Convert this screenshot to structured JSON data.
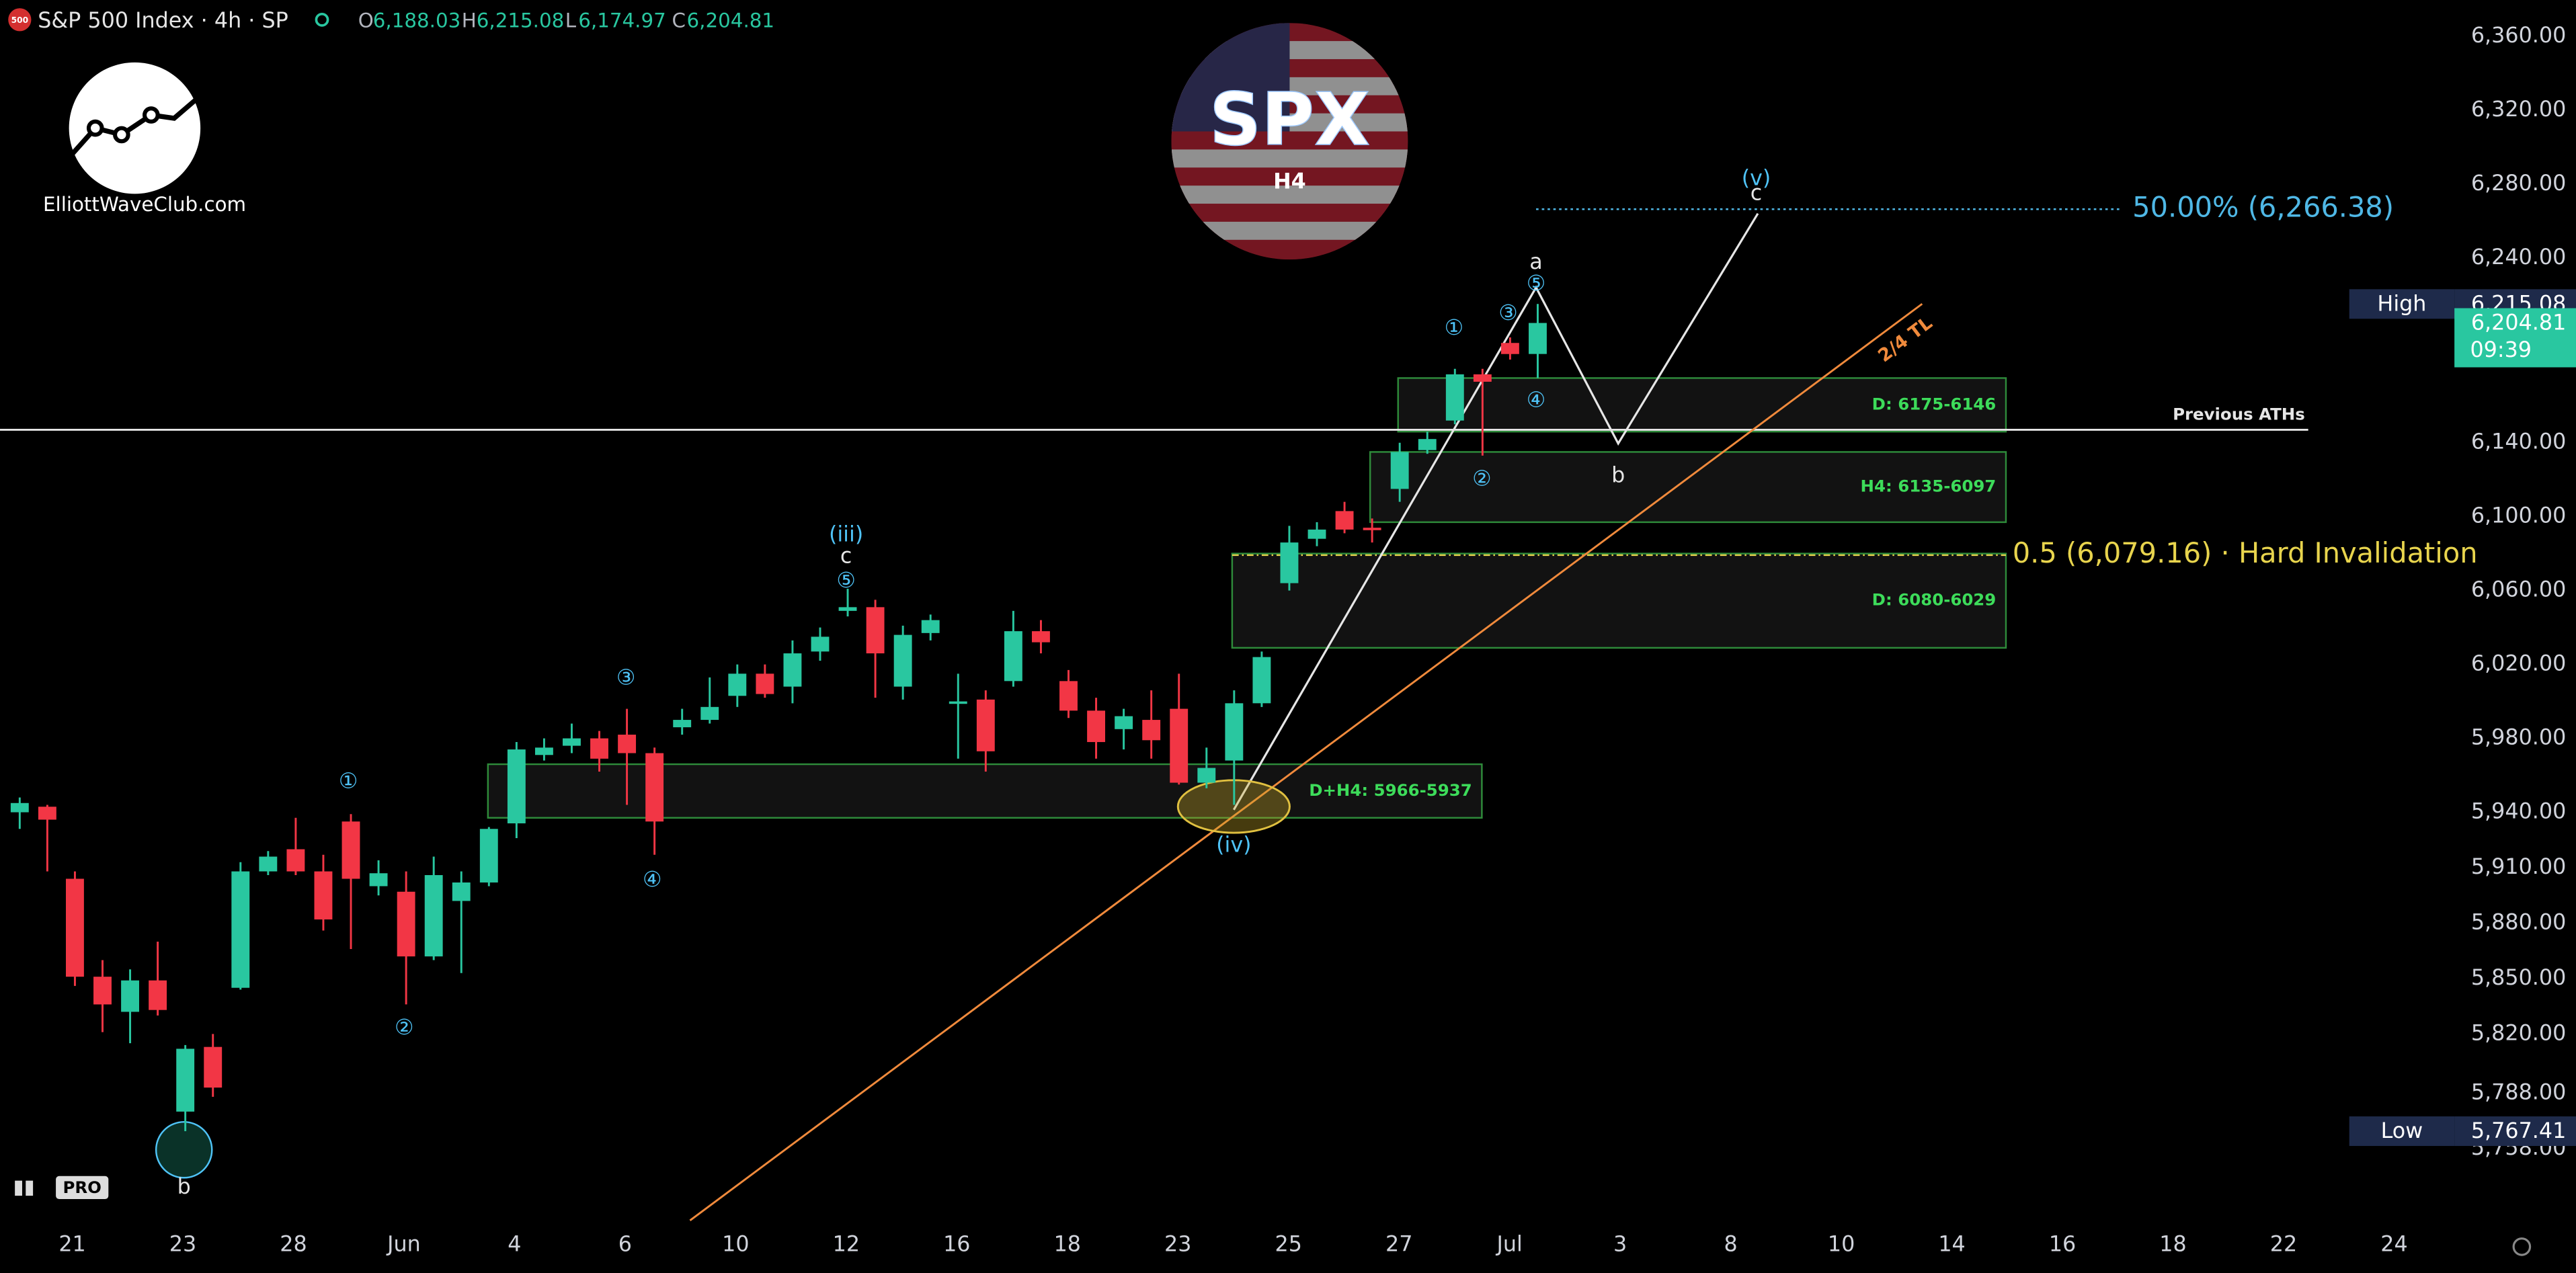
{
  "header": {
    "badge": "500",
    "symbol": "S&P 500 Index · 4h · SP",
    "o_label": "O",
    "o": "6,188.03",
    "h_label": "H",
    "h": "6,215.08",
    "l_label": "L",
    "l": "6,174.97",
    "c_label": "C",
    "c": "6,204.81"
  },
  "logo": {
    "site": "ElliottWaveClub.com",
    "ticker": "SPX",
    "timeframe": "H4",
    "platform": "PRO"
  },
  "chart_data": {
    "type": "candlestick",
    "up_color": "#29c7a0",
    "down_color": "#f23645",
    "open": [
      5940,
      5943,
      5904,
      5851,
      5832,
      5849,
      5778,
      5813,
      5845,
      5908,
      5920,
      5908,
      5935,
      5900,
      5897,
      5862,
      5892,
      5902,
      5934,
      5971,
      5976,
      5980,
      5982,
      5972,
      5986,
      5990,
      6003,
      6015,
      6008,
      6027,
      6049,
      6051,
      6008,
      6037,
      5999,
      6001,
      6011,
      6038,
      6011,
      5995,
      5985,
      5990,
      5996,
      5956,
      5968,
      5999,
      6064,
      6088,
      6103,
      6094,
      6115,
      6136,
      6152,
      6177,
      6194,
      6188.03
    ],
    "high": [
      5948,
      5944,
      5908,
      5860,
      5855,
      5870,
      5814,
      5820,
      5913,
      5919,
      5937,
      5917,
      5939,
      5914,
      5908,
      5916,
      5908,
      5932,
      5978,
      5980,
      5988,
      5984,
      5996,
      5975,
      5996,
      6013,
      6020,
      6020,
      6033,
      6040,
      6061,
      6055,
      6041,
      6047,
      6015,
      6006,
      6049,
      6044,
      6017,
      6002,
      5996,
      6006,
      6015,
      5975,
      6006,
      6027,
      6095,
      6097,
      6108,
      6099,
      6140,
      6146,
      6180,
      6180,
      6197,
      6215.08
    ],
    "low": [
      5931,
      5908,
      5846,
      5821,
      5815,
      5830,
      5767.41,
      5786,
      5844,
      5906,
      5906,
      5876,
      5866,
      5895,
      5836,
      5860,
      5853,
      5900,
      5926,
      5968,
      5972,
      5962,
      5944,
      5917,
      5982,
      5988,
      5997,
      6002,
      5999,
      6022,
      6046,
      6002,
      6001,
      6033,
      5969,
      5962,
      6008,
      6026,
      5991,
      5969,
      5974,
      5969,
      5955,
      5953,
      5944,
      5997,
      6060,
      6084,
      6091,
      6086,
      6108,
      6134,
      6150,
      6133,
      6185,
      6174.97
    ],
    "close": [
      5945,
      5936,
      5851,
      5836,
      5849,
      5833,
      5812,
      5791,
      5908,
      5916,
      5908,
      5882,
      5904,
      5907,
      5862,
      5906,
      5902,
      5931,
      5974,
      5975,
      5980,
      5969,
      5972,
      5935,
      5990,
      5997,
      6015,
      6004,
      6026,
      6035,
      6051,
      6026,
      6036,
      6044,
      6000,
      5973,
      6038,
      6032,
      5995,
      5978,
      5992,
      5979,
      5956,
      5964,
      5999,
      6024,
      6086,
      6093,
      6093,
      6093,
      6135,
      6142,
      6177,
      6173,
      6188,
      6204.81
    ],
    "x_tick_labels": [
      "21",
      "23",
      "28",
      "Jun",
      "4",
      "6",
      "10",
      "12",
      "16",
      "18",
      "23",
      "25",
      "27",
      "Jul",
      "3",
      "8",
      "10",
      "14",
      "16",
      "18",
      "22",
      "24"
    ],
    "ylim": [
      5719.1,
      6379.6
    ],
    "yticks": [
      {
        "value": 6360,
        "label": "6,360.00"
      },
      {
        "value": 6320,
        "label": "6,320.00"
      },
      {
        "value": 6280,
        "label": "6,280.00"
      },
      {
        "value": 6240,
        "label": "6,240.00"
      },
      {
        "value": 6140,
        "label": "6,140.00"
      },
      {
        "value": 6100,
        "label": "6,100.00"
      },
      {
        "value": 6060,
        "label": "6,060.00"
      },
      {
        "value": 6020,
        "label": "6,020.00"
      },
      {
        "value": 5980,
        "label": "5,980.00"
      },
      {
        "value": 5940,
        "label": "5,940.00"
      },
      {
        "value": 5910,
        "label": "5,910.00"
      },
      {
        "value": 5880,
        "label": "5,880.00"
      },
      {
        "value": 5850,
        "label": "5,850.00"
      },
      {
        "value": 5820,
        "label": "5,820.00"
      },
      {
        "value": 5788,
        "label": "5,788.00"
      },
      {
        "value": 5758,
        "label": "5,758.00"
      }
    ],
    "grid": false,
    "price_tags": [
      {
        "name": "High",
        "value": 6215.08,
        "value_label": "6,215.08",
        "color": "#1e2a4a"
      },
      {
        "value": 6204.81,
        "value_label": "6,204.81",
        "countdown": "09:39",
        "color": "#29c7a0"
      },
      {
        "name": "Low",
        "value": 5767.41,
        "value_label": "5,767.41",
        "color": "#1e2a4a"
      }
    ],
    "zones": [
      {
        "label": "D: 6175-6146",
        "top": 6175,
        "bottom": 6146
      },
      {
        "label": "H4: 6135-6097",
        "top": 6135,
        "bottom": 6097
      },
      {
        "label": "D: 6080-6029",
        "top": 6080,
        "bottom": 6029
      },
      {
        "label": "D+H4: 5966-5937",
        "top": 5966,
        "bottom": 5937
      }
    ],
    "zone_color": "#2e8b3a",
    "zone_label_color": "#3ddc5a",
    "levels": [
      {
        "label": "Previous ATHs",
        "value": 6147,
        "color": "#e6e6e6"
      },
      {
        "label": "50.00% (6,266.38)",
        "value": 6266.38,
        "color": "#4fb8e6"
      },
      {
        "label": "0.5 (6,079.16) · Hard Invalidation",
        "value": 6079.16,
        "color": "#e8d44d"
      }
    ],
    "annotations": [
      "①",
      "②",
      "③",
      "④",
      "(iii)",
      "c",
      "⑤",
      "b",
      "(iv)",
      "①",
      "②",
      "③",
      "④",
      "⑤",
      "a",
      "b",
      "(v)",
      "c",
      "2/4 TL"
    ]
  }
}
